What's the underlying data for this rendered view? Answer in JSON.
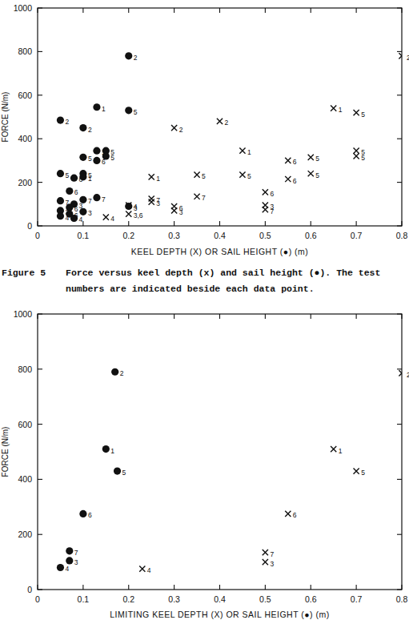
{
  "chart_data": [
    {
      "type": "scatter",
      "xlabel": "KEEL DEPTH (X) OR SAIL HEIGHT (●) (m)",
      "ylabel": "FORCE (N/m)",
      "xlim": [
        0,
        0.8
      ],
      "ylim": [
        0,
        1000
      ],
      "xticks": [
        0,
        0.1,
        0.2,
        0.3,
        0.4,
        0.5,
        0.6,
        0.7,
        0.8
      ],
      "yticks": [
        0,
        200,
        400,
        600,
        800,
        1000
      ],
      "series": [
        {
          "marker": "x",
          "x": [
            0.8,
            0.65,
            0.7,
            0.4,
            0.3,
            0.45,
            0.7,
            0.7,
            0.6,
            0.55,
            0.25,
            0.35,
            0.45,
            0.6,
            0.55,
            0.5,
            0.35,
            0.25,
            0.25,
            0.3,
            0.5,
            0.5,
            0.3,
            0.2,
            0.2,
            0.15
          ],
          "values": [
            780,
            540,
            520,
            480,
            450,
            345,
            345,
            320,
            315,
            300,
            225,
            235,
            235,
            240,
            215,
            155,
            135,
            125,
            110,
            90,
            95,
            75,
            70,
            95,
            55,
            40
          ],
          "point_labels": [
            "2",
            "1",
            "5",
            "2",
            "2",
            "1",
            "5",
            "5",
            "5",
            "6",
            "1",
            "5",
            "5",
            "5",
            "6",
            "6",
            "7",
            "7",
            "3",
            "6",
            "3",
            "7",
            "3",
            "4",
            "3,6",
            "4"
          ]
        },
        {
          "marker": "circle",
          "x": [
            0.2,
            0.13,
            0.2,
            0.05,
            0.1,
            0.13,
            0.15,
            0.15,
            0.1,
            0.13,
            0.05,
            0.1,
            0.08,
            0.1,
            0.07,
            0.13,
            0.1,
            0.05,
            0.08,
            0.07,
            0.05,
            0.1,
            0.07,
            0.05,
            0.08,
            0.2
          ],
          "values": [
            780,
            545,
            530,
            485,
            450,
            345,
            345,
            320,
            315,
            300,
            240,
            240,
            220,
            225,
            160,
            130,
            120,
            115,
            100,
            85,
            70,
            65,
            55,
            45,
            35,
            90
          ],
          "point_labels": [
            "2",
            "1",
            "5",
            "2",
            "2",
            "1",
            "5",
            "5",
            "5",
            "6",
            "5",
            "5",
            "6",
            "1",
            "6",
            "7",
            "7",
            "7",
            "3",
            "6",
            "3",
            "3",
            "6",
            "4",
            "4",
            "3"
          ]
        }
      ]
    },
    {
      "type": "scatter",
      "xlabel": "LIMITING KEEL DEPTH (X) OR SAIL HEIGHT (●) (m)",
      "ylabel": "FORCE (N/m)",
      "xlim": [
        0,
        0.8
      ],
      "ylim": [
        0,
        1000
      ],
      "xticks": [
        0,
        0.1,
        0.2,
        0.3,
        0.4,
        0.5,
        0.6,
        0.7,
        0.8
      ],
      "yticks": [
        0,
        200,
        400,
        600,
        800,
        1000
      ],
      "series": [
        {
          "marker": "circle",
          "x": [
            0.17,
            0.15,
            0.175,
            0.1,
            0.07,
            0.07,
            0.05
          ],
          "values": [
            790,
            510,
            430,
            275,
            140,
            105,
            80
          ],
          "point_labels": [
            "2",
            "1",
            "5",
            "6",
            "7",
            "3",
            "4"
          ]
        },
        {
          "marker": "x",
          "x": [
            0.8,
            0.65,
            0.7,
            0.55,
            0.5,
            0.5,
            0.23
          ],
          "values": [
            785,
            510,
            430,
            275,
            135,
            100,
            75
          ],
          "point_labels": [
            "2",
            "1",
            "5",
            "6",
            "7",
            "3",
            "4"
          ]
        }
      ]
    }
  ],
  "caption": {
    "label": "Figure 5",
    "lines": [
      "Force versus keel depth (x) and sail height (●).  The test",
      "numbers are indicated beside each data point."
    ]
  }
}
